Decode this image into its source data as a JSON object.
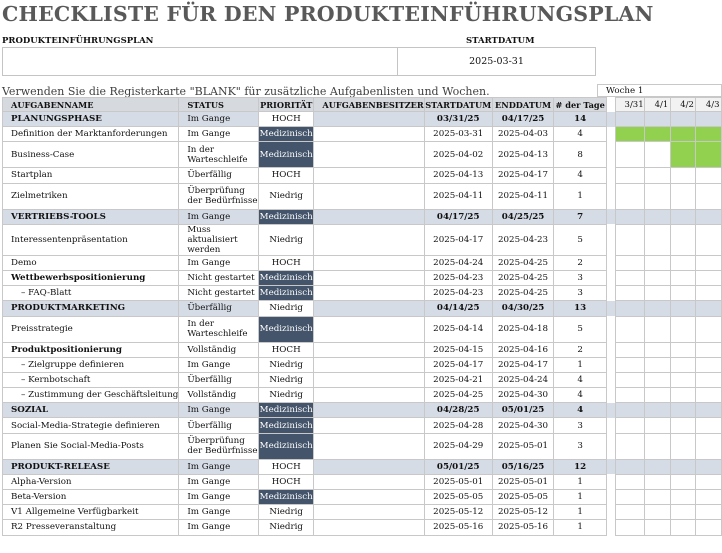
{
  "title": "CHECKLISTE FÜR DEN PRODUKTEINFÜHRUNGSPLAN",
  "plan_label": "PRODUKTEINFÜHRUNGSPLAN",
  "plan_value": "",
  "start_label": "STARTDATUM",
  "start_value": "2025-03-31",
  "note": "Verwenden Sie die Registerkarte \"BLANK\" für zusätzliche Aufgabenlisten und Wochen.",
  "week_label": "Woche 1",
  "columns": [
    "AUFGABENNAME",
    "STATUS",
    "PRIORITÄT",
    "AUFGABENBESITZER",
    "STARTDATUM",
    "ENDDATUM",
    "# der Tage"
  ],
  "days": [
    "3/31",
    "4/1",
    "4/2",
    "4/3"
  ],
  "colors": {
    "accent_dark": "#44546a",
    "section_bg": "#d6dce6",
    "gantt_dark": "#00b050",
    "gantt_light": "#92d050"
  },
  "rows": [
    {
      "type": "section",
      "name": "PLANUNGSPHASE",
      "status": "Im Gange",
      "priority": "HOCH",
      "owner": "",
      "start": "03/31/25",
      "end": "04/17/25",
      "days": "14",
      "bar": [
        1,
        1,
        1,
        1
      ]
    },
    {
      "type": "task",
      "name": "Definition der Marktanforderungen",
      "status": "Im Gange",
      "priority": "Medizinisch",
      "owner": "",
      "start": "2025-03-31",
      "end": "2025-04-03",
      "days": "4",
      "bar": [
        2,
        2,
        2,
        2
      ]
    },
    {
      "type": "task",
      "name": "Business-Case",
      "status": "In der Warteschleife",
      "priority": "Medizinisch",
      "owner": "",
      "start": "2025-04-02",
      "end": "2025-04-13",
      "days": "8",
      "bar": [
        0,
        0,
        2,
        2
      ]
    },
    {
      "type": "task",
      "name": "Startplan",
      "status": "Überfällig",
      "priority": "HOCH",
      "owner": "",
      "start": "2025-04-13",
      "end": "2025-04-17",
      "days": "4",
      "bar": [
        0,
        0,
        0,
        0
      ]
    },
    {
      "type": "task",
      "name": "Zielmetriken",
      "status": "Überprüfung der Bedürfnisse",
      "priority": "Niedrig",
      "owner": "",
      "start": "2025-04-11",
      "end": "2025-04-11",
      "days": "1",
      "bar": [
        0,
        0,
        0,
        0
      ]
    },
    {
      "type": "section",
      "name": "VERTRIEBS-TOOLS",
      "status": "Im Gange",
      "priority": "Medizinisch",
      "owner": "",
      "start": "04/17/25",
      "end": "04/25/25",
      "days": "7",
      "bar": [
        0,
        0,
        0,
        0
      ]
    },
    {
      "type": "task",
      "name": "Interessentenpräsentation",
      "status": "Muss aktualisiert werden",
      "priority": "Niedrig",
      "owner": "",
      "start": "2025-04-17",
      "end": "2025-04-23",
      "days": "5",
      "bar": [
        0,
        0,
        0,
        0
      ]
    },
    {
      "type": "task",
      "name": "Demo",
      "status": "Im Gange",
      "priority": "HOCH",
      "owner": "",
      "start": "2025-04-24",
      "end": "2025-04-25",
      "days": "2",
      "bar": [
        0,
        0,
        0,
        0
      ]
    },
    {
      "type": "bold",
      "name": "Wettbewerbspositionierung",
      "status": "Nicht gestartet",
      "priority": "Medizinisch",
      "owner": "",
      "start": "2025-04-23",
      "end": "2025-04-25",
      "days": "3",
      "bar": [
        0,
        0,
        0,
        0
      ]
    },
    {
      "type": "sub",
      "name": "– FAQ-Blatt",
      "status": "Nicht gestartet",
      "priority": "Medizinisch",
      "owner": "",
      "start": "2025-04-23",
      "end": "2025-04-25",
      "days": "3",
      "bar": [
        0,
        0,
        0,
        0
      ]
    },
    {
      "type": "section",
      "name": "PRODUKTMARKETING",
      "status": "Überfällig",
      "priority": "Niedrig",
      "owner": "",
      "start": "04/14/25",
      "end": "04/30/25",
      "days": "13",
      "bar": [
        0,
        0,
        0,
        0
      ]
    },
    {
      "type": "task",
      "name": "Preisstrategie",
      "status": "In der Warteschleife",
      "priority": "Medizinisch",
      "owner": "",
      "start": "2025-04-14",
      "end": "2025-04-18",
      "days": "5",
      "bar": [
        0,
        0,
        0,
        0
      ]
    },
    {
      "type": "bold",
      "name": "Produktpositionierung",
      "status": "Vollständig",
      "priority": "HOCH",
      "owner": "",
      "start": "2025-04-15",
      "end": "2025-04-16",
      "days": "2",
      "bar": [
        0,
        0,
        0,
        0
      ]
    },
    {
      "type": "sub",
      "name": "– Zielgruppe definieren",
      "status": "Im Gange",
      "priority": "Niedrig",
      "owner": "",
      "start": "2025-04-17",
      "end": "2025-04-17",
      "days": "1",
      "bar": [
        0,
        0,
        0,
        0
      ]
    },
    {
      "type": "sub",
      "name": "– Kernbotschaft",
      "status": "Überfällig",
      "priority": "Niedrig",
      "owner": "",
      "start": "2025-04-21",
      "end": "2025-04-24",
      "days": "4",
      "bar": [
        0,
        0,
        0,
        0
      ]
    },
    {
      "type": "sub",
      "name": "– Zustimmung der Geschäftsleitung",
      "status": "Vollständig",
      "priority": "Niedrig",
      "owner": "",
      "start": "2025-04-25",
      "end": "2025-04-30",
      "days": "4",
      "bar": [
        0,
        0,
        0,
        0
      ]
    },
    {
      "type": "section",
      "name": "SOZIAL",
      "status": "Im Gange",
      "priority": "Medizinisch",
      "owner": "",
      "start": "04/28/25",
      "end": "05/01/25",
      "days": "4",
      "bar": [
        0,
        0,
        0,
        0
      ]
    },
    {
      "type": "task",
      "name": "Social-Media-Strategie definieren",
      "status": "Überfällig",
      "priority": "Medizinisch",
      "owner": "",
      "start": "2025-04-28",
      "end": "2025-04-30",
      "days": "3",
      "bar": [
        0,
        0,
        0,
        0
      ]
    },
    {
      "type": "task",
      "name": "Planen Sie Social-Media-Posts",
      "status": "Überprüfung der Bedürfnisse",
      "priority": "Medizinisch",
      "owner": "",
      "start": "2025-04-29",
      "end": "2025-05-01",
      "days": "3",
      "bar": [
        0,
        0,
        0,
        0
      ]
    },
    {
      "type": "section",
      "name": "PRODUKT-RELEASE",
      "status": "Im Gange",
      "priority": "HOCH",
      "owner": "",
      "start": "05/01/25",
      "end": "05/16/25",
      "days": "12",
      "bar": [
        0,
        0,
        0,
        0
      ]
    },
    {
      "type": "task",
      "name": "Alpha-Version",
      "status": "Im Gange",
      "priority": "HOCH",
      "owner": "",
      "start": "2025-05-01",
      "end": "2025-05-01",
      "days": "1",
      "bar": [
        0,
        0,
        0,
        0
      ]
    },
    {
      "type": "task",
      "name": "Beta-Version",
      "status": "Im Gange",
      "priority": "Medizinisch",
      "owner": "",
      "start": "2025-05-05",
      "end": "2025-05-05",
      "days": "1",
      "bar": [
        0,
        0,
        0,
        0
      ]
    },
    {
      "type": "task",
      "name": "V1 Allgemeine Verfügbarkeit",
      "status": "Im Gange",
      "priority": "Niedrig",
      "owner": "",
      "start": "2025-05-12",
      "end": "2025-05-12",
      "days": "1",
      "bar": [
        0,
        0,
        0,
        0
      ]
    },
    {
      "type": "task",
      "name": "R2 Presseveranstaltung",
      "status": "Im Gange",
      "priority": "Niedrig",
      "owner": "",
      "start": "2025-05-16",
      "end": "2025-05-16",
      "days": "1",
      "bar": [
        0,
        0,
        0,
        0
      ]
    }
  ]
}
